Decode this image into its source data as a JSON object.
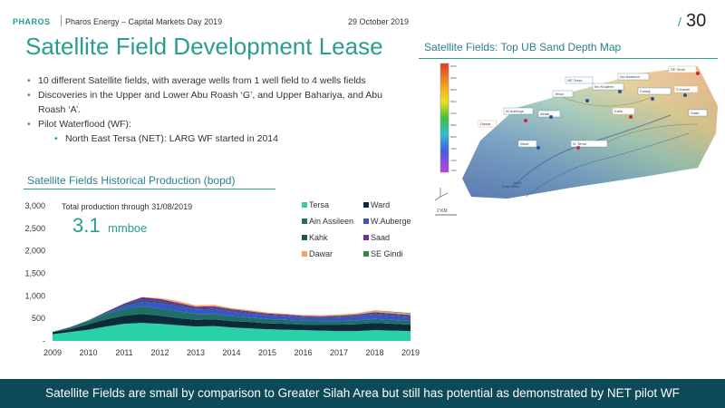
{
  "header": {
    "brand": "PHAROS",
    "subtitle": "Pharos Energy – Capital Markets Day 2019",
    "date": "29 October 2019",
    "page_number": "30"
  },
  "title": "Satellite Field Development Lease",
  "bullets": [
    {
      "text": "10 different Satellite fields, with average wells from 1 well field to 4 wells fields",
      "level": 1
    },
    {
      "text": "Discoveries in the Upper and Lower Abu Roash ‘G’, and Upper Bahariya, and Abu Roash ‘A’.",
      "level": 1
    },
    {
      "text": "Pilot Waterflood (WF):",
      "level": 1
    },
    {
      "text": "North East Tersa (NET): LARG WF started in 2014",
      "level": 2
    }
  ],
  "map": {
    "title": "Satellite Fields: Top UB Sand Depth Map",
    "labels": [
      "SE Gindi",
      "Ain Assileen",
      "NE Tersa",
      "Tersa",
      "W.Auberge",
      "Abadi",
      "Dawar",
      "Kahk",
      "Ward",
      "N. Tersa",
      "Ibn Khaleen",
      "S.Kamel",
      "Faraaj",
      "Saad",
      "Kahk West",
      "Gindi"
    ],
    "scale_label": "2 KM"
  },
  "production": {
    "title": "Satellite Fields Historical Production (bopd)",
    "note": "Total production through 31/08/2019",
    "total_value": "3.1",
    "total_unit": "mmboe"
  },
  "chart_data": {
    "type": "area",
    "stacked": true,
    "x": [
      2009,
      2009.5,
      2010,
      2010.5,
      2011,
      2011.5,
      2012,
      2012.5,
      2013,
      2013.5,
      2014,
      2014.5,
      2015,
      2015.5,
      2016,
      2016.5,
      2017,
      2017.5,
      2018,
      2018.5,
      2019,
      2019.6
    ],
    "xticks": [
      "2009",
      "2010",
      "2011",
      "2012",
      "2013",
      "2014",
      "2015",
      "2016",
      "2017",
      "2018",
      "2019"
    ],
    "yticks": [
      "-",
      "500",
      "1,000",
      "1,500",
      "2,000",
      "2,500",
      "3,000"
    ],
    "ylim": [
      0,
      3000
    ],
    "legend_position": "top-right",
    "series": [
      {
        "name": "Tersa",
        "color": "#2ad1a8",
        "values": [
          150,
          200,
          250,
          320,
          380,
          400,
          380,
          350,
          320,
          330,
          300,
          280,
          260,
          250,
          240,
          230,
          220,
          220,
          240,
          230,
          220,
          200
        ]
      },
      {
        "name": "Ward",
        "color": "#0b2a3a",
        "values": [
          50,
          60,
          120,
          160,
          180,
          200,
          180,
          160,
          150,
          150,
          140,
          140,
          130,
          130,
          120,
          130,
          140,
          150,
          160,
          150,
          140,
          120
        ]
      },
      {
        "name": "Ain Assileen",
        "color": "#1f6f66",
        "values": [
          0,
          50,
          80,
          120,
          150,
          170,
          160,
          150,
          130,
          120,
          110,
          100,
          95,
          90,
          85,
          80,
          80,
          85,
          90,
          85,
          80,
          70
        ]
      },
      {
        "name": "W.Auberge",
        "color": "#3a55c8",
        "values": [
          0,
          0,
          0,
          20,
          60,
          100,
          120,
          110,
          100,
          110,
          100,
          90,
          80,
          75,
          70,
          70,
          80,
          90,
          100,
          95,
          90,
          80
        ]
      },
      {
        "name": "Kahk",
        "color": "#1d5a4a",
        "values": [
          0,
          0,
          10,
          20,
          30,
          40,
          30,
          25,
          20,
          20,
          20,
          20,
          15,
          15,
          15,
          15,
          15,
          15,
          20,
          20,
          20,
          15
        ]
      },
      {
        "name": "Saad",
        "color": "#6b2fa0",
        "values": [
          0,
          0,
          0,
          10,
          30,
          60,
          60,
          50,
          40,
          40,
          35,
          30,
          30,
          25,
          25,
          25,
          25,
          25,
          30,
          30,
          25,
          20
        ]
      },
      {
        "name": "Dawar",
        "color": "#f4a25c",
        "values": [
          0,
          0,
          0,
          0,
          0,
          0,
          20,
          40,
          30,
          30,
          25,
          25,
          20,
          20,
          20,
          20,
          25,
          30,
          35,
          30,
          30,
          25
        ]
      },
      {
        "name": "SE Gindi",
        "color": "#2b8a4a",
        "values": [
          0,
          0,
          0,
          0,
          0,
          0,
          0,
          0,
          0,
          0,
          0,
          0,
          0,
          0,
          0,
          0,
          0,
          0,
          5,
          10,
          15,
          10
        ]
      }
    ]
  },
  "footer": {
    "text": "Satellite Fields are small by comparison to Greater Silah Area but still has potential as demonstrated by NET pilot WF"
  }
}
